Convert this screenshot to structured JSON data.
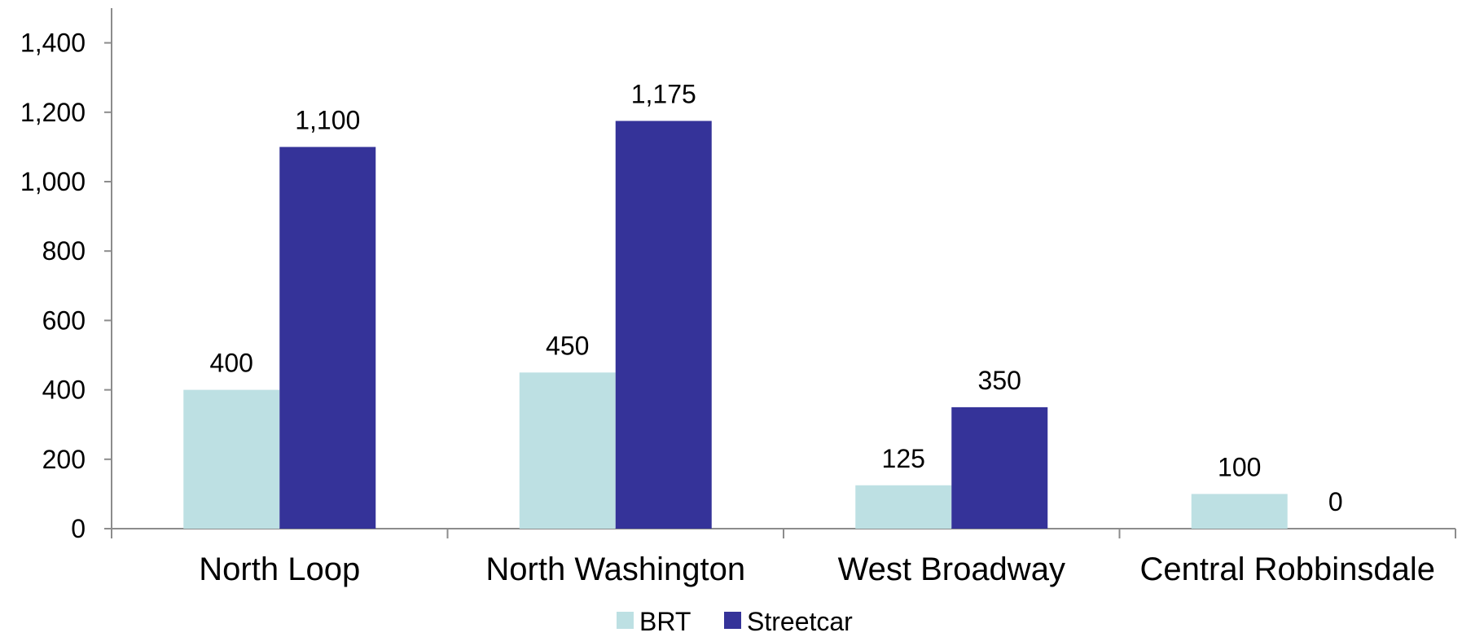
{
  "chart_data": {
    "type": "bar",
    "categories": [
      "North Loop",
      "North Washington",
      "West Broadway",
      "Central Robbinsdale"
    ],
    "series": [
      {
        "name": "BRT",
        "color": "#bde0e3",
        "values": [
          400,
          450,
          125,
          100
        ]
      },
      {
        "name": "Streetcar",
        "color": "#353399",
        "values": [
          1100,
          1175,
          350,
          0
        ]
      }
    ],
    "value_labels": [
      [
        "400",
        "450",
        "125",
        "100"
      ],
      [
        "1,100",
        "1,175",
        "350",
        "0"
      ]
    ],
    "title": "",
    "xlabel": "",
    "ylabel": "",
    "ylim": [
      0,
      1500
    ],
    "yticks": [
      0,
      200,
      400,
      600,
      800,
      1000,
      1200,
      1400
    ],
    "ytick_labels": [
      "0",
      "200",
      "400",
      "600",
      "800",
      "1,000",
      "1,200",
      "1,400"
    ],
    "grid": false,
    "legend_position": "bottom"
  }
}
